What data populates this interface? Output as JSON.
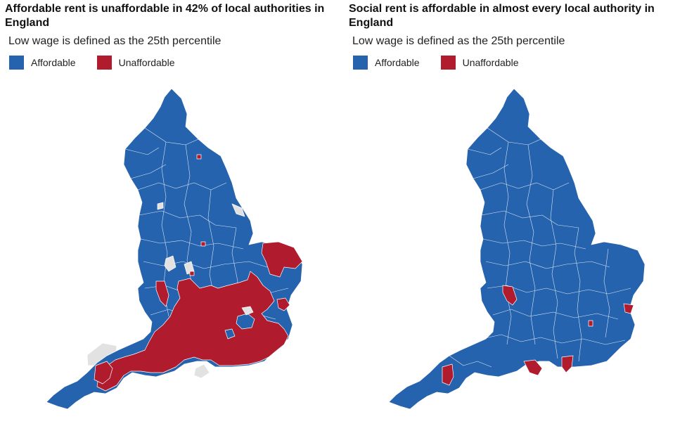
{
  "colors": {
    "affordable": "#2563ae",
    "unaffordable": "#b01b2e",
    "nodata": "#e2e2e2"
  },
  "panels": [
    {
      "title": "Affordable rent is unaffordable in 42% of local authorities in England",
      "subtitle": "Low wage is defined as the 25th percentile",
      "legend": [
        {
          "label": "Affordable",
          "color": "#2563ae"
        },
        {
          "label": "Unaffordable",
          "color": "#b01b2e"
        }
      ]
    },
    {
      "title": "Social rent is affordable in almost every local authority in England",
      "subtitle": "Low wage is defined as the 25th percentile",
      "legend": [
        {
          "label": "Affordable",
          "color": "#2563ae"
        },
        {
          "label": "Unaffordable",
          "color": "#b01b2e"
        }
      ]
    }
  ]
}
